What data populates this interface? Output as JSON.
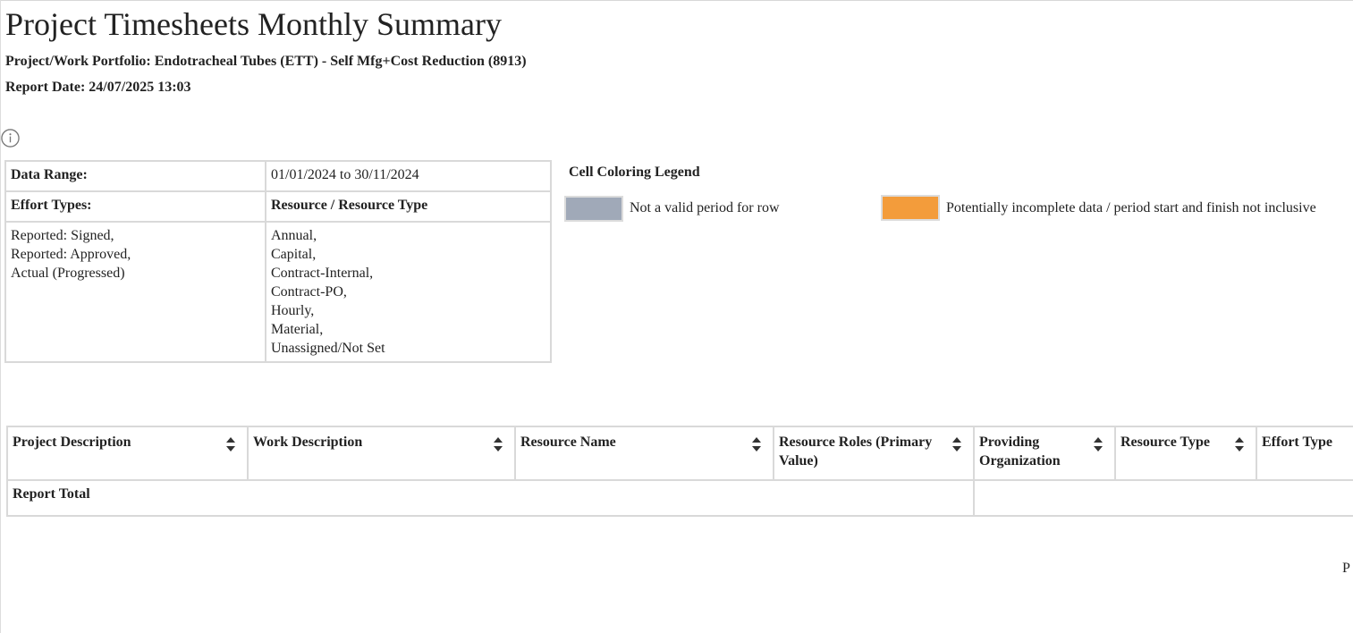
{
  "report": {
    "title": "Project Timesheets Monthly Summary",
    "portfolio_line": "Project/Work Portfolio: Endotracheal Tubes (ETT) - Self Mfg+Cost Reduction (8913)",
    "date_line": "Report Date: 24/07/2025 13:03",
    "info_icon": "info-icon"
  },
  "params": {
    "data_range_label": "Data Range:",
    "data_range_value": "01/01/2024 to 30/11/2024",
    "effort_types_label": "Effort Types:",
    "resource_type_label": "Resource / Resource Type",
    "effort_types": [
      "Reported: Signed,",
      "Reported: Approved,",
      "Actual (Progressed)"
    ],
    "resource_types": [
      "Annual,",
      "Capital,",
      "Contract-Internal,",
      "Contract-PO,",
      "Hourly,",
      "Material,",
      "Unassigned/Not Set"
    ]
  },
  "legend": {
    "title": "Cell Coloring Legend",
    "items": [
      {
        "label": "Not a valid period for row",
        "color": "#a0a9b8"
      },
      {
        "label": "Potentially incomplete data / period start and finish not inclusive",
        "color": "#f39c3b"
      }
    ]
  },
  "grid": {
    "columns": [
      {
        "label": "Project Description",
        "sortable": true
      },
      {
        "label": "Work Description",
        "sortable": true
      },
      {
        "label": "Resource Name",
        "sortable": true
      },
      {
        "label": "Resource Roles (Primary Value)",
        "sortable": true
      },
      {
        "label": "Providing Organization",
        "sortable": true
      },
      {
        "label": "Resource Type",
        "sortable": true
      },
      {
        "label": "Effort Type",
        "sortable": false
      }
    ],
    "total_label": "Report Total"
  },
  "clipped_text": "P"
}
